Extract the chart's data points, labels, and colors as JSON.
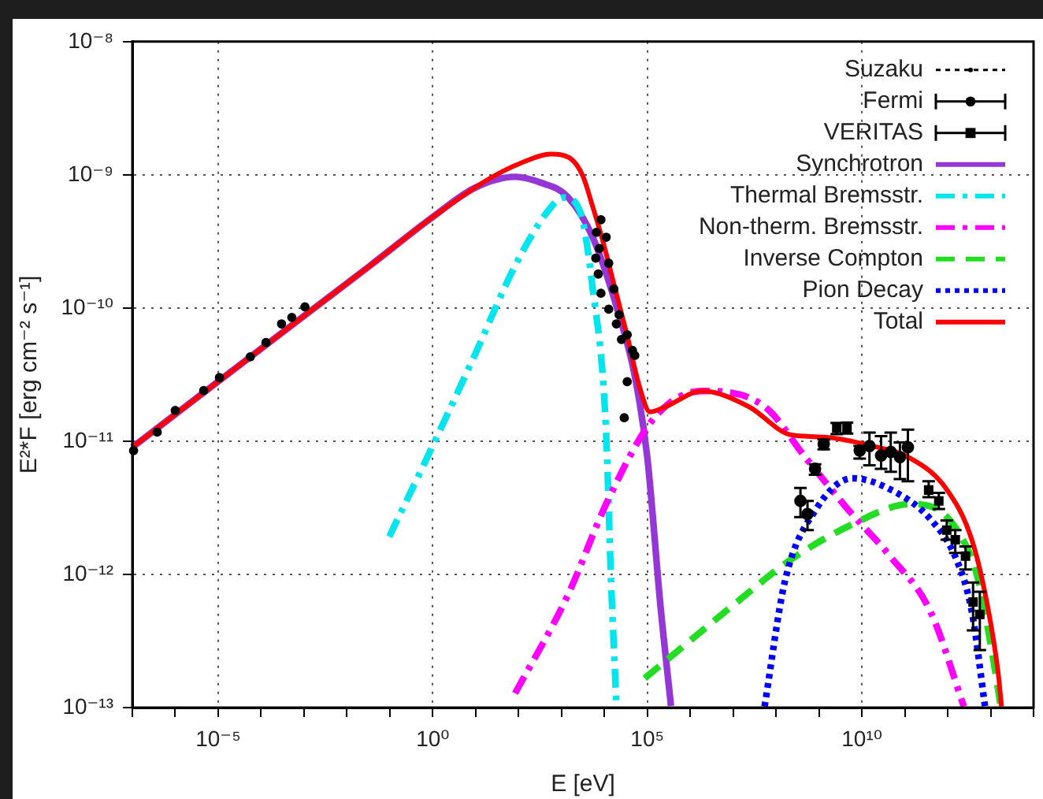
{
  "chart_data": {
    "type": "line",
    "xlabel": "E [eV]",
    "ylabel": "E²*F [erg cm⁻² s⁻¹]",
    "log": "xy",
    "grid": true,
    "legend": "top right",
    "xlim": [
      1e-07,
      100000000000000.0
    ],
    "xticks": [
      {
        "value": 1e-07,
        "label": null
      },
      {
        "value": 1e-06,
        "label": null
      },
      {
        "value": 1e-05,
        "label": "10⁻⁵"
      },
      {
        "value": 0.0001,
        "label": null
      },
      {
        "value": 0.001,
        "label": null
      },
      {
        "value": 0.01,
        "label": null
      },
      {
        "value": 0.1,
        "label": null
      },
      {
        "value": 1,
        "label": "10⁰"
      },
      {
        "value": 10,
        "label": null
      },
      {
        "value": 100,
        "label": null
      },
      {
        "value": 1000,
        "label": null
      },
      {
        "value": 10000,
        "label": null
      },
      {
        "value": 100000.0,
        "label": "10⁵"
      },
      {
        "value": 1000000.0,
        "label": null
      },
      {
        "value": 10000000.0,
        "label": null
      },
      {
        "value": 100000000.0,
        "label": null
      },
      {
        "value": 1000000000.0,
        "label": null
      },
      {
        "value": 10000000000.0,
        "label": "10¹⁰"
      },
      {
        "value": 100000000000.0,
        "label": null
      },
      {
        "value": 1000000000000.0,
        "label": null
      },
      {
        "value": 10000000000000.0,
        "label": null
      },
      {
        "value": 100000000000000.0,
        "label": null
      }
    ],
    "ylim": [
      1e-13,
      1e-08
    ],
    "yticks": [
      {
        "value": 1e-13,
        "label": "10⁻¹³"
      },
      {
        "value": 1e-12,
        "label": "10⁻¹²"
      },
      {
        "value": 1e-11,
        "label": "10⁻¹¹"
      },
      {
        "value": 1e-10,
        "label": "10⁻¹⁰"
      },
      {
        "value": 1e-09,
        "label": "10⁻⁹"
      },
      {
        "value": 1e-08,
        "label": "10⁻⁸"
      }
    ],
    "series": [
      {
        "name": "Suzaku",
        "type": "scatter",
        "color": "#000000",
        "marker": "circle",
        "line_style": "dotted",
        "x": [
          1.07e-07,
          3.8e-07,
          1e-06,
          4.6e-06,
          1.07e-05,
          5.6e-05,
          0.00013,
          0.0003,
          0.00052,
          0.00105,
          6300,
          6500,
          7200,
          7600,
          8300,
          8300,
          11000,
          12600,
          12600,
          16600,
          19000,
          22000,
          25000,
          29000,
          34000,
          34000,
          45000,
          51000
        ],
        "values": [
          8.5e-12,
          1.17e-11,
          1.7e-11,
          2.4e-11,
          3e-11,
          4.3e-11,
          5.5e-11,
          7.6e-11,
          8.5e-11,
          1.02e-10,
          2.37e-10,
          3.7e-10,
          1.8e-10,
          2.8e-10,
          4.6e-10,
          1.29e-10,
          3.4e-10,
          2.17e-10,
          9.8e-11,
          1.39e-10,
          7.6e-11,
          8.9e-11,
          5.8e-11,
          1.5e-11,
          6.3e-11,
          2.8e-11,
          4.8e-11,
          4.4e-11
        ]
      },
      {
        "name": "Fermi",
        "type": "scatter",
        "color": "#000000",
        "marker": "circle",
        "x": [
          370000000.0,
          540000000.0,
          810000000.0,
          1290000000.0,
          8900000000.0,
          15000000000.0,
          28000000000.0,
          47000000000.0,
          77000000000.0,
          118000000000.0
        ],
        "values": [
          3.56e-12,
          2.84e-12,
          6.2e-12,
          9.5e-12,
          8.5e-12,
          9.2e-12,
          7.8e-12,
          8.3e-12,
          7.6e-12,
          9e-12
        ],
        "errors": [
          [
            2.69e-12,
            4.46e-12
          ],
          [
            2.15e-12,
            3.56e-12
          ],
          [
            5.6e-12,
            6.7e-12
          ],
          [
            8.7e-12,
            1.03e-11
          ],
          [
            7.4e-12,
            9.2e-12
          ],
          [
            6.6e-12,
            1.16e-11
          ],
          [
            6.2e-12,
            1.09e-11
          ],
          [
            5.9e-12,
            1.16e-11
          ],
          [
            5.2e-12,
            9.8e-12
          ],
          [
            5e-12,
            1.22e-11
          ]
        ]
      },
      {
        "name": "VERITAS",
        "type": "scatter",
        "color": "#000000",
        "marker": "square",
        "x": [
          2600000000.0,
          4500000000.0,
          360000000000.0,
          620000000000.0,
          950000000000.0,
          1500000000000.0,
          2600000000000.0,
          3900000000000.0,
          5600000000000.0
        ],
        "values": [
          1.25e-11,
          1.26e-11,
          4.3e-12,
          3.56e-12,
          2.15e-12,
          1.82e-12,
          1.37e-12,
          6.2e-13,
          5e-13
        ],
        "errors": [
          [
            1.13e-11,
            1.37e-11
          ],
          [
            1.14e-11,
            1.38e-11
          ],
          [
            3.8e-12,
            5e-12
          ],
          [
            3.1e-12,
            4.1e-12
          ],
          [
            1.82e-12,
            2.54e-12
          ],
          [
            1.45e-12,
            2.15e-12
          ],
          [
            1.09e-12,
            1.62e-12
          ],
          [
            3.8e-13,
            8.7e-13
          ],
          [
            2.7e-13,
            7.4e-13
          ]
        ]
      },
      {
        "name": "Synchrotron",
        "type": "line",
        "color": "#9437d6",
        "line_style": "solid",
        "x": [
          1e-07,
          1e-05,
          0.00099,
          0.034,
          1,
          9.6,
          83,
          327,
          1350,
          5330,
          21900,
          51000,
          100000,
          203000,
          356000
        ],
        "values": [
          9e-12,
          2.81e-11,
          8.7e-11,
          2.07e-10,
          4.82e-10,
          7.98e-10,
          9.66e-10,
          8.73e-10,
          6.9e-10,
          3.4e-10,
          8.9e-11,
          3.11e-11,
          7.55e-12,
          5.77e-13,
          1.03e-13
        ]
      },
      {
        "name": "Thermal Bremsstr.",
        "type": "line",
        "color": "#00e5ee",
        "line_style": "dashdot",
        "x": [
          0.097,
          1,
          9.6,
          80,
          467,
          1130,
          2730,
          5330,
          10800,
          14300,
          19000
        ],
        "values": [
          1.92e-12,
          9.25e-12,
          4.46e-11,
          2.03e-10,
          5.27e-10,
          6.75e-10,
          5.27e-10,
          1.4e-10,
          1.28e-11,
          8.9e-13,
          1.07e-13
        ]
      },
      {
        "name": "Non-therm. Bremsstr.",
        "type": "line",
        "color": "#ff00ff",
        "line_style": "dashdot",
        "x": [
          83,
          1350,
          12400,
          153000,
          1880000.0,
          54000000.0,
          497000000.0,
          4600000000.0,
          42600000000.0,
          394000000000.0,
          2380000000000.0
        ],
        "values": [
          1.28e-13,
          6.8e-13,
          3.68e-12,
          1.53e-11,
          2.38e-11,
          1.82e-11,
          7.46e-12,
          3.11e-12,
          1.4e-12,
          5.27e-13,
          1.02e-13
        ]
      },
      {
        "name": "Inverse Compton",
        "type": "line",
        "color": "#22dd22",
        "line_style": "dashed",
        "x": [
          87000,
          13100000.0,
          213000000.0,
          6100000000.0,
          132000000000.0,
          394000000000.0,
          1620000000000.0,
          4830000000000.0,
          11300000000000.0,
          17200000000000.0
        ],
        "values": [
          1.66e-13,
          6.3e-13,
          1.28e-12,
          2.38e-12,
          3.37e-12,
          3.25e-12,
          2.17e-12,
          9.8e-13,
          2.38e-13,
          1.02e-13
        ]
      },
      {
        "name": "Pion Decay",
        "type": "line",
        "color": "#0000ff",
        "line_style": "dotted",
        "x": [
          54000000.0,
          161000000.0,
          870000000.0,
          6100000000.0,
          42600000000.0,
          394000000000.0,
          1620000000000.0,
          3640000000000.0,
          7400000000000.0
        ],
        "values": [
          1.02e-13,
          8.9e-13,
          3.11e-12,
          5.27e-12,
          4.4e-12,
          2.6e-12,
          1.28e-12,
          5.27e-13,
          1.02e-13
        ]
      },
      {
        "name": "Total",
        "type": "line",
        "color": "#ff0000",
        "line_style": "solid",
        "x": [
          1e-07,
          1e-05,
          0.00099,
          0.034,
          1,
          20.8,
          110,
          577,
          1550,
          3140,
          5330,
          9380,
          16500,
          33500,
          65000,
          115000,
          269000,
          1880000.0,
          23000000.0,
          213000000.0,
          1490000000.0,
          14200000000.0,
          132000000000.0,
          920000000000.0,
          3640000000000.0,
          8500000000000.0,
          15000000000000.0,
          17900000000000.0
        ],
        "values": [
          9e-12,
          2.81e-11,
          8.7e-11,
          2.07e-10,
          4.82e-10,
          9.35e-10,
          1.22e-09,
          1.43e-09,
          1.34e-09,
          9.8e-10,
          5.77e-10,
          3.11e-10,
          1.53e-10,
          6.3e-11,
          2.6e-11,
          1.66e-11,
          1.82e-11,
          2.38e-11,
          1.82e-11,
          1.12e-11,
          1.07e-11,
          9.35e-12,
          7.46e-12,
          4.4e-12,
          1.82e-12,
          5.77e-13,
          1.82e-13,
          1.02e-13
        ]
      }
    ]
  }
}
